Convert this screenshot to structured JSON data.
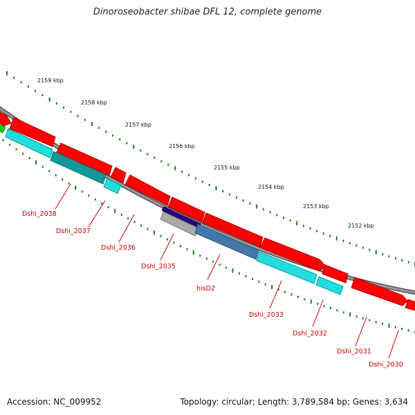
{
  "title": "Dinoroseobacter shibae DFL 12, complete genome",
  "footer": {
    "accession": "Accession: NC_009952",
    "topology": "Topology: circular; Length: 3,789,584 bp; Genes: 3,634"
  },
  "kbp_labels": [
    "2159 kbp",
    "2158 kbp",
    "2157 kbp",
    "2156 kbp",
    "2155 kbp",
    "2154 kbp",
    "2153 kbp",
    "2152 kbp"
  ],
  "genes": [
    {
      "label": "Dshi_2038"
    },
    {
      "label": "Dshi_2037"
    },
    {
      "label": "Dshi_2036"
    },
    {
      "label": "Dshi_2035"
    },
    {
      "label": "hisD2"
    },
    {
      "label": "Dshi_2033"
    },
    {
      "label": "Dshi_2032"
    },
    {
      "label": "Dshi_2031"
    },
    {
      "label": "Dshi_2030"
    }
  ],
  "colors": {
    "cds": "#ff0000",
    "cds_outline": "#aa0000",
    "gene_track": "#22dddd",
    "gene_track_dark": "#119999",
    "backbone": "#8a8a8a",
    "ticks": "#1a7a1a",
    "label": "#cc0000",
    "green_feature": "#22cc22",
    "hisD2_track": "#4477aa",
    "hisD2_dark": "#220088"
  }
}
